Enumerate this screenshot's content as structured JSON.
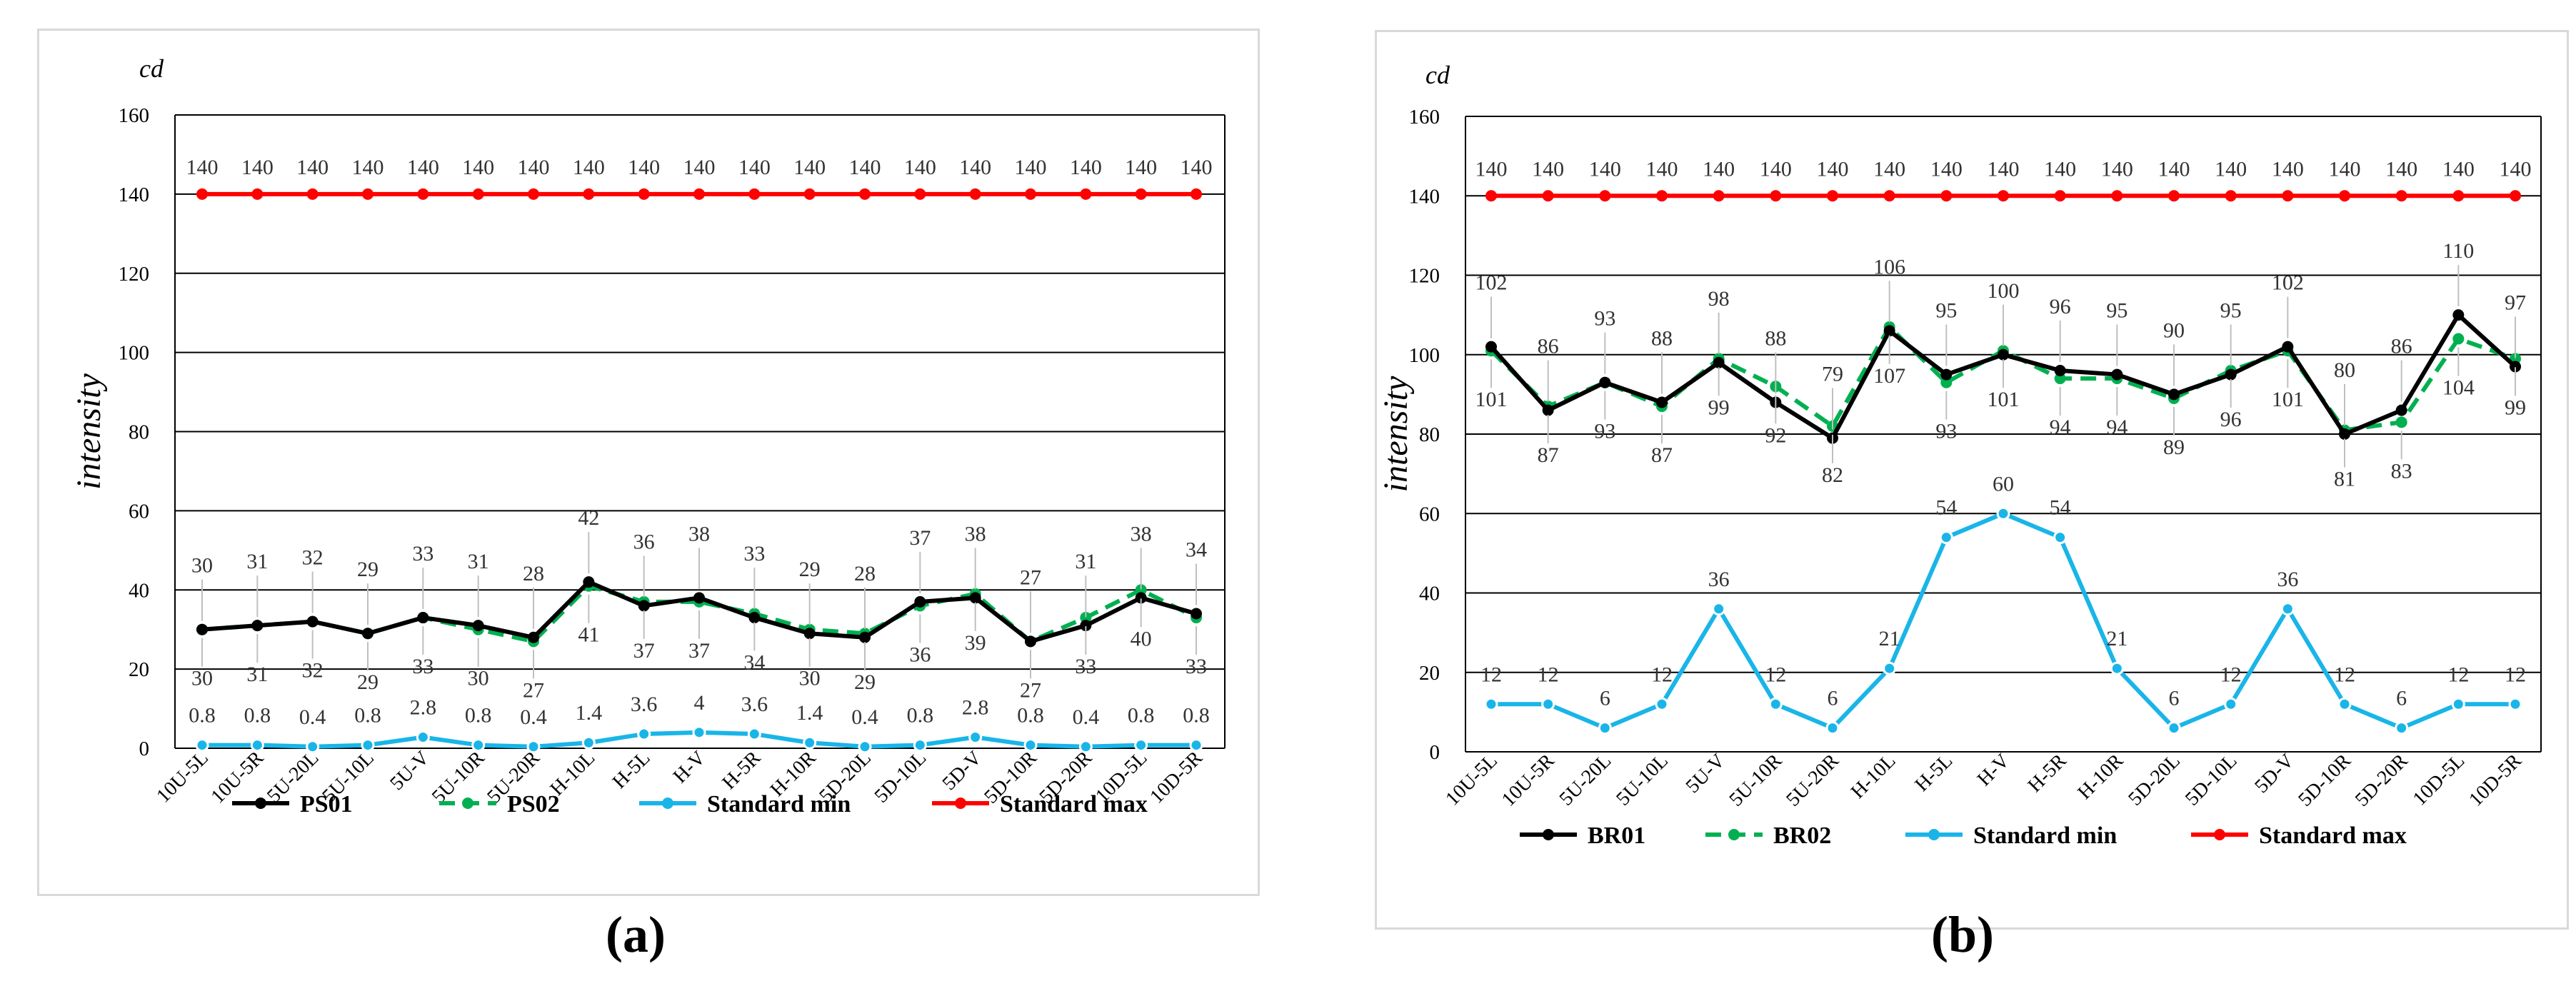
{
  "chart_data": [
    {
      "id": "a",
      "type": "line",
      "caption": "(a)",
      "unit_label": "cd",
      "ylabel": "intensity",
      "xlabel": "",
      "ylim": [
        0,
        160
      ],
      "yticks": [
        0,
        20,
        40,
        60,
        80,
        100,
        120,
        140,
        160
      ],
      "ytick_labels": [
        "0",
        "20",
        "40",
        "60",
        "80",
        "100",
        "120",
        "140",
        "160"
      ],
      "grid": true,
      "legend_position": "bottom",
      "categories": [
        "10U-5L",
        "10U-5R",
        "5U-20L",
        "5U-10L",
        "5U-V",
        "5U-10R",
        "5U-20R",
        "H-10L",
        "H-5L",
        "H-V",
        "H-5R",
        "H-10R",
        "5D-20L",
        "5D-10L",
        "5D-V",
        "5D-10R",
        "5D-20R",
        "10D-5L",
        "10D-5R"
      ],
      "series": [
        {
          "name": "PS01",
          "color": "#000000",
          "dash": false,
          "label_pos": "above",
          "values": [
            30,
            31,
            32,
            29,
            33,
            31,
            28,
            42,
            36,
            38,
            33,
            29,
            28,
            37,
            38,
            27,
            31,
            38,
            34
          ],
          "labels": [
            "30",
            "31",
            "32",
            "29",
            "33",
            "31",
            "28",
            "42",
            "36",
            "38",
            "33",
            "29",
            "28",
            "37",
            "38",
            "27",
            "31",
            "38",
            "34"
          ]
        },
        {
          "name": "PS02",
          "color": "#00b050",
          "dash": true,
          "label_pos": "below",
          "values": [
            30,
            31,
            32,
            29,
            33,
            30,
            27,
            41,
            37,
            37,
            34,
            30,
            29,
            36,
            39,
            27,
            33,
            40,
            33
          ],
          "labels": [
            "30",
            "31",
            "32",
            "29",
            "33",
            "30",
            "27",
            "41",
            "37",
            "37",
            "34",
            "30",
            "29",
            "36",
            "39",
            "27",
            "33",
            "40",
            "33"
          ]
        },
        {
          "name": "Standard min",
          "color": "#19b5e8",
          "dash": false,
          "label_pos": "above",
          "values": [
            0.8,
            0.8,
            0.4,
            0.8,
            2.8,
            0.8,
            0.4,
            1.4,
            3.6,
            4,
            3.6,
            1.4,
            0.4,
            0.8,
            2.8,
            0.8,
            0.4,
            0.8,
            0.8
          ],
          "labels": [
            "0.8",
            "0.8",
            "0.4",
            "0.8",
            "2.8",
            "0.8",
            "0.4",
            "1.4",
            "3.6",
            "4",
            "3.6",
            "1.4",
            "0.4",
            "0.8",
            "2.8",
            "0.8",
            "0.4",
            "0.8",
            "0.8"
          ]
        },
        {
          "name": "Standard max",
          "color": "#ff0000",
          "dash": false,
          "label_pos": "above",
          "values": [
            140,
            140,
            140,
            140,
            140,
            140,
            140,
            140,
            140,
            140,
            140,
            140,
            140,
            140,
            140,
            140,
            140,
            140,
            140
          ],
          "labels": [
            "140",
            "140",
            "140",
            "140",
            "140",
            "140",
            "140",
            "140",
            "140",
            "140",
            "140",
            "140",
            "140",
            "140",
            "140",
            "140",
            "140",
            "140",
            "140"
          ]
        }
      ]
    },
    {
      "id": "b",
      "type": "line",
      "caption": "(b)",
      "unit_label": "cd",
      "ylabel": "intensity",
      "xlabel": "",
      "ylim": [
        0,
        160
      ],
      "yticks": [
        0,
        20,
        40,
        60,
        80,
        100,
        120,
        140,
        160
      ],
      "ytick_labels": [
        "0",
        "20",
        "40",
        "60",
        "80",
        "100",
        "120",
        "140",
        "160"
      ],
      "grid": true,
      "legend_position": "bottom",
      "categories": [
        "10U-5L",
        "10U-5R",
        "5U-20L",
        "5U-10L",
        "5U-V",
        "5U-10R",
        "5U-20R",
        "H-10L",
        "H-5L",
        "H-V",
        "H-5R",
        "H-10R",
        "5D-20L",
        "5D-10L",
        "5D-V",
        "5D-10R",
        "5D-20R",
        "10D-5L",
        "10D-5R"
      ],
      "series": [
        {
          "name": "BR01",
          "color": "#000000",
          "dash": false,
          "label_pos": "above",
          "values": [
            102,
            86,
            93,
            88,
            98,
            88,
            79,
            106,
            95,
            100,
            96,
            95,
            90,
            95,
            102,
            80,
            86,
            110,
            97
          ],
          "labels": [
            "102",
            "86",
            "93",
            "88",
            "98",
            "88",
            "79",
            "106",
            "95",
            "100",
            "96",
            "95",
            "90",
            "95",
            "102",
            "80",
            "86",
            "110",
            "97"
          ]
        },
        {
          "name": "BR02",
          "color": "#00b050",
          "dash": true,
          "label_pos": "below",
          "values": [
            101,
            87,
            93,
            87,
            99,
            92,
            82,
            107,
            93,
            101,
            94,
            94,
            89,
            96,
            101,
            81,
            83,
            104,
            99
          ],
          "labels": [
            "101",
            "87",
            "93",
            "87",
            "99",
            "92",
            "82",
            "107",
            "93",
            "101",
            "94",
            "94",
            "89",
            "96",
            "101",
            "81",
            "83",
            "104",
            "99"
          ]
        },
        {
          "name": "Standard min",
          "color": "#19b5e8",
          "dash": false,
          "label_pos": "above",
          "values": [
            12,
            12,
            6,
            12,
            36,
            12,
            6,
            21,
            54,
            60,
            54,
            21,
            6,
            12,
            36,
            12,
            6,
            12,
            12
          ],
          "labels": [
            "12",
            "12",
            "6",
            "12",
            "36",
            "12",
            "6",
            "21",
            "54",
            "60",
            "54",
            "21",
            "6",
            "12",
            "36",
            "12",
            "6",
            "12",
            "12"
          ]
        },
        {
          "name": "Standard max",
          "color": "#ff0000",
          "dash": false,
          "label_pos": "above",
          "values": [
            140,
            140,
            140,
            140,
            140,
            140,
            140,
            140,
            140,
            140,
            140,
            140,
            140,
            140,
            140,
            140,
            140,
            140,
            140
          ],
          "labels": [
            "140",
            "140",
            "140",
            "140",
            "140",
            "140",
            "140",
            "140",
            "140",
            "140",
            "140",
            "140",
            "140",
            "140",
            "140",
            "140",
            "140",
            "140",
            "140"
          ]
        }
      ]
    }
  ]
}
